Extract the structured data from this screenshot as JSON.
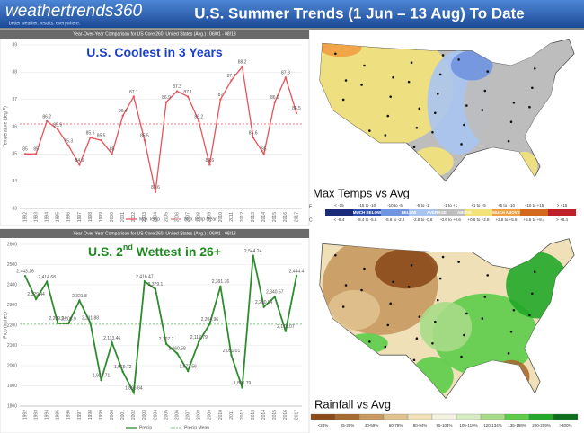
{
  "header": {
    "logo": "weathertrends360",
    "tagline": "better weather. results. everywhere.",
    "title": "U.S. Summer Trends (1 Jun – 13 Aug) To Date"
  },
  "chart_data": [
    {
      "type": "line",
      "title": "Year-Over-Year Comparison for US Core 260, United States (Avg.) : 06/01 - 08/13",
      "annotation": [
        "U.S. Coolest in 3 Years"
      ],
      "y_label": "Temperature (deg F)",
      "categories": [
        "1992",
        "1993",
        "1994",
        "1995",
        "1996",
        "1997",
        "1998",
        "1999",
        "2000",
        "2001",
        "2002",
        "2003",
        "2004",
        "2005",
        "2006",
        "2007",
        "2008",
        "2009",
        "2010",
        "2011",
        "2012",
        "2013",
        "2014",
        "2015",
        "2016",
        "2017"
      ],
      "series": [
        {
          "name": "Max Temp",
          "color": "#e8525a",
          "values": [
            85,
            85,
            86.2,
            85.9,
            85.3,
            84.6,
            85.6,
            85.5,
            85.0,
            86.4,
            87.1,
            85.5,
            83.6,
            86.9,
            87.3,
            87.1,
            86.2,
            84.6,
            87,
            87.7,
            88.2,
            85.6,
            85.0,
            86.9,
            87.8,
            86.5
          ]
        }
      ],
      "reference_line": {
        "name": "Max Temp Mean",
        "value": 86.1,
        "color": "#e8525a"
      },
      "ylim": [
        83,
        89
      ],
      "yticks": [
        83,
        84,
        85,
        86,
        87,
        88,
        89
      ],
      "grid": true
    },
    {
      "type": "line",
      "title": "Year-Over-Year Comparison for US Core 260, United States (Avg.) : 06/01 - 08/13",
      "annotation": [
        "U.S. 2",
        "nd",
        " Wettest in 26+"
      ],
      "y_label": "Prcp (inches)",
      "categories": [
        "1992",
        "1993",
        "1994",
        "1995",
        "1996",
        "1997",
        "1998",
        "1999",
        "2000",
        "2001",
        "2002",
        "2003",
        "2004",
        "2005",
        "2006",
        "2007",
        "2008",
        "2009",
        "2010",
        "2011",
        "2012",
        "2013",
        "2014",
        "2015",
        "2016",
        "2017"
      ],
      "series": [
        {
          "name": "Precip",
          "color": "#2e8b2e",
          "values": [
            2443.26,
            2329.44,
            2414.68,
            2209.34,
            2208.9,
            2321.8,
            2211.88,
            1927.71,
            2113.46,
            1969.72,
            1866.84,
            2416.47,
            2379.1,
            2107.7,
            2060.58,
            1973.56,
            2117.79,
            2204.96,
            2391.76,
            2051.01,
            1890.79,
            2544.24,
            2290.54,
            2340.57,
            2170.07,
            2444.4
          ],
          "value_labels": [
            "2,443.26",
            "2,329.44",
            "2,414.68",
            "2,209.34",
            "2,208.9",
            "2,321.8",
            "2,211.88",
            "1,927.71",
            "2,113.46",
            "1,969.72",
            "1,866.84",
            "2,416.47",
            "2,379.1",
            "2,107.7",
            "2,060.58",
            "1,973.56",
            "2,117.79",
            "2,204.96",
            "2,391.76",
            "2,051.01",
            "1,890.79",
            "2,544.24",
            "2,290.54",
            "2,340.57",
            "2,170.07",
            "2,444.4"
          ]
        }
      ],
      "reference_line": {
        "name": "Precip Mean",
        "value": 2205.3,
        "color": "#7cc47c"
      },
      "ylim": [
        1800,
        2600
      ],
      "yticks": [
        1800,
        1900,
        2000,
        2100,
        2200,
        2300,
        2400,
        2500,
        2600
      ],
      "grid": true
    }
  ],
  "maps": [
    {
      "title": "Max Temps vs Avg",
      "units": [
        "°F",
        "°C"
      ],
      "legend": [
        {
          "f": "< -15",
          "c": "< -8.4",
          "color": "#1c2a7a"
        },
        {
          "f": "-15 to -10",
          "c": "-8.4 to -5.6",
          "color": "#2f4fb0"
        },
        {
          "f": "-10 to -5",
          "c": "-5.6 to -2.8",
          "color": "#6f94e0"
        },
        {
          "f": "-5 to -1",
          "c": "-2.8 to -0.6",
          "color": "#a9c4ef"
        },
        {
          "f": "-1 to +1",
          "c": "-0.6 to +0.6",
          "color": "#bdbdbd"
        },
        {
          "f": "+1 to +5",
          "c": "+0.6 to +2.8",
          "color": "#f3e27a"
        },
        {
          "f": "+5 to +10",
          "c": "+2.8 to +5.6",
          "color": "#f0a040"
        },
        {
          "f": "+10 to +15",
          "c": "+5.6 to +8.4",
          "color": "#d2691e"
        },
        {
          "f": "> +15",
          "c": "> +8.4",
          "color": "#c0202a"
        }
      ],
      "categories": [
        "MUCH BELOW",
        "BELOW",
        "AVERAGE",
        "ABOVE",
        "MUCH ABOVE"
      ]
    },
    {
      "title": "Rainfall vs Avg",
      "legend": [
        {
          "label": "<24%",
          "color": "#8b4a1a"
        },
        {
          "label": "25-39%",
          "color": "#a86a30"
        },
        {
          "label": "40-59%",
          "color": "#c89a60"
        },
        {
          "label": "60-79%",
          "color": "#e0c290"
        },
        {
          "label": "80-94%",
          "color": "#efe0b8"
        },
        {
          "label": "95-104%",
          "color": "#f2f2e0"
        },
        {
          "label": "105-119%",
          "color": "#d6ecc0"
        },
        {
          "label": "120-134%",
          "color": "#a8dc8a"
        },
        {
          "label": "135-199%",
          "color": "#5ccc4a"
        },
        {
          "label": "200-299%",
          "color": "#22a82a"
        },
        {
          "label": ">300%",
          "color": "#0c6e1a"
        }
      ]
    }
  ]
}
